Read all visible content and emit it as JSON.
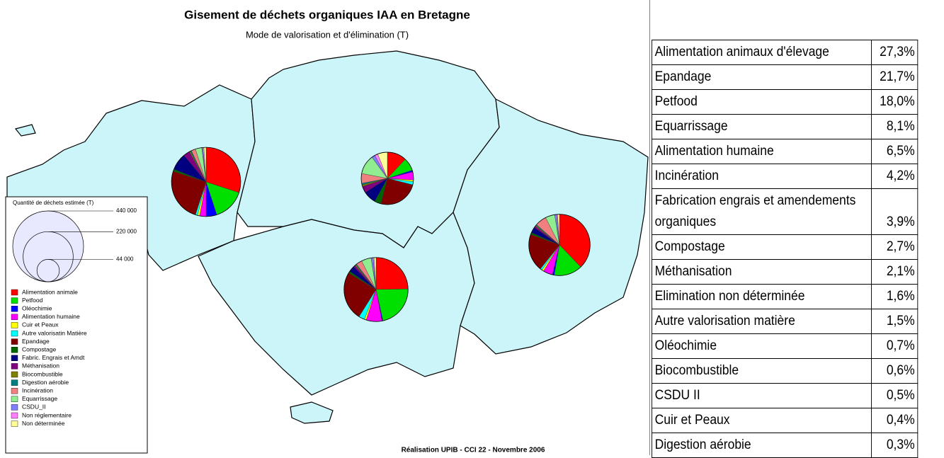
{
  "map": {
    "title": "Gisement de déchets organiques IAA en Bretagne",
    "subtitle": "Mode de valorisation et d'élimination (T)",
    "credit": "Réalisation UPIB - CCI 22 - Novembre 2006",
    "legend": {
      "title": "Quantité de déchets estimée (T)",
      "scale": [
        {
          "value": 440000,
          "label": "440 000"
        },
        {
          "value": 220000,
          "label": "220 000"
        },
        {
          "value": 44000,
          "label": "44 000"
        }
      ],
      "items": [
        {
          "name": "Alimentation animale",
          "color": "#ff0000"
        },
        {
          "name": "Petfood",
          "color": "#00e000"
        },
        {
          "name": "Oléochimie",
          "color": "#0000ff"
        },
        {
          "name": "Alimentation humaine",
          "color": "#ff00ff"
        },
        {
          "name": "Cuir et Peaux",
          "color": "#ffff00"
        },
        {
          "name": "Autre valorisatin Matière",
          "color": "#00ffff"
        },
        {
          "name": "Epandage",
          "color": "#800000"
        },
        {
          "name": "Compostage",
          "color": "#006400"
        },
        {
          "name": "Fabric. Engrais et Amdt",
          "color": "#000080"
        },
        {
          "name": "Méthanisation",
          "color": "#800080"
        },
        {
          "name": "Biocombustible",
          "color": "#808000"
        },
        {
          "name": "Digestion aérobie",
          "color": "#008080"
        },
        {
          "name": "Incinération",
          "color": "#f08080"
        },
        {
          "name": "Equarrissage",
          "color": "#90ee90"
        },
        {
          "name": "CSDU_II",
          "color": "#8080ff"
        },
        {
          "name": "Non réglementaire",
          "color": "#ff80ff"
        },
        {
          "name": "Non déterminée",
          "color": "#ffff99"
        }
      ]
    },
    "pies": [
      {
        "quantity": 420000,
        "values": [
          30,
          15,
          5,
          3,
          1,
          1,
          25,
          1,
          8,
          3,
          0.5,
          0.5,
          2,
          3,
          0.5,
          0.5,
          1
        ]
      },
      {
        "quantity": 240000,
        "values": [
          12,
          8,
          1,
          5,
          1,
          2,
          25,
          4,
          8,
          4,
          1,
          1,
          6,
          12,
          2,
          2,
          6
        ]
      },
      {
        "quantity": 360000,
        "values": [
          25,
          22,
          0.5,
          8,
          1,
          3,
          25,
          1,
          3,
          1,
          0.5,
          0.5,
          3,
          5,
          1,
          0.5,
          1
        ]
      },
      {
        "quantity": 330000,
        "values": [
          38,
          15,
          1,
          5,
          1,
          1,
          20,
          1,
          3,
          1,
          0.5,
          0.5,
          6,
          5,
          1,
          0.5,
          1
        ]
      }
    ]
  },
  "table": {
    "rows": [
      [
        "Alimentation animaux d'élevage",
        "27,3%"
      ],
      [
        "Epandage",
        "21,7%"
      ],
      [
        "Petfood",
        "18,0%"
      ],
      [
        "Equarrissage",
        "8,1%"
      ],
      [
        "Alimentation humaine",
        "6,5%"
      ],
      [
        "Incinération",
        "4,2%"
      ],
      [
        "Fabrication engrais et amendements organiques",
        "3,9%"
      ],
      [
        "Compostage",
        "2,7%"
      ],
      [
        "Méthanisation",
        "2,1%"
      ],
      [
        "Elimination non déterminée",
        "1,6%"
      ],
      [
        "Autre valorisation matière",
        "1,5%"
      ],
      [
        "Oléochimie",
        "0,7%"
      ],
      [
        "Biocombustible",
        "0,6%"
      ],
      [
        "CSDU II",
        "0,5%"
      ],
      [
        "Cuir et Peaux",
        "0,4%"
      ],
      [
        "Digestion aérobie",
        "0,3%"
      ]
    ]
  }
}
